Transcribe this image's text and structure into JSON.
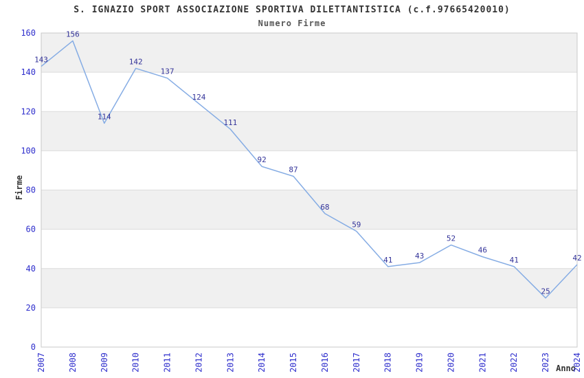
{
  "chart_data": {
    "type": "line",
    "title": "S. IGNAZIO SPORT ASSOCIAZIONE SPORTIVA DILETTANTISTICA (c.f.97665420010)",
    "subtitle": "Numero Firme",
    "xlabel": "Anno",
    "ylabel": "Firme",
    "categories": [
      "2007",
      "2008",
      "2009",
      "2010",
      "2011",
      "2012",
      "2013",
      "2014",
      "2015",
      "2016",
      "2017",
      "2018",
      "2019",
      "2020",
      "2021",
      "2022",
      "2023",
      "2024"
    ],
    "values": [
      143,
      156,
      114,
      142,
      137,
      124,
      111,
      92,
      87,
      68,
      59,
      41,
      43,
      52,
      46,
      41,
      25,
      42
    ],
    "ylim": [
      0,
      160
    ],
    "ytick_step": 20,
    "grid": "horizontal-bands",
    "legend": "none",
    "point_labels_visible": true,
    "colors": {
      "line": "#85ace4",
      "point_label": "#333399",
      "tick_label": "#2d2dcc",
      "band": "#f0f0f0",
      "band_alt": "#ffffff",
      "grid_line": "#dcdcdc",
      "axis_line": "#c8c8c8",
      "title": "#333333",
      "subtitle": "#555555",
      "axis_title": "#333333"
    }
  }
}
